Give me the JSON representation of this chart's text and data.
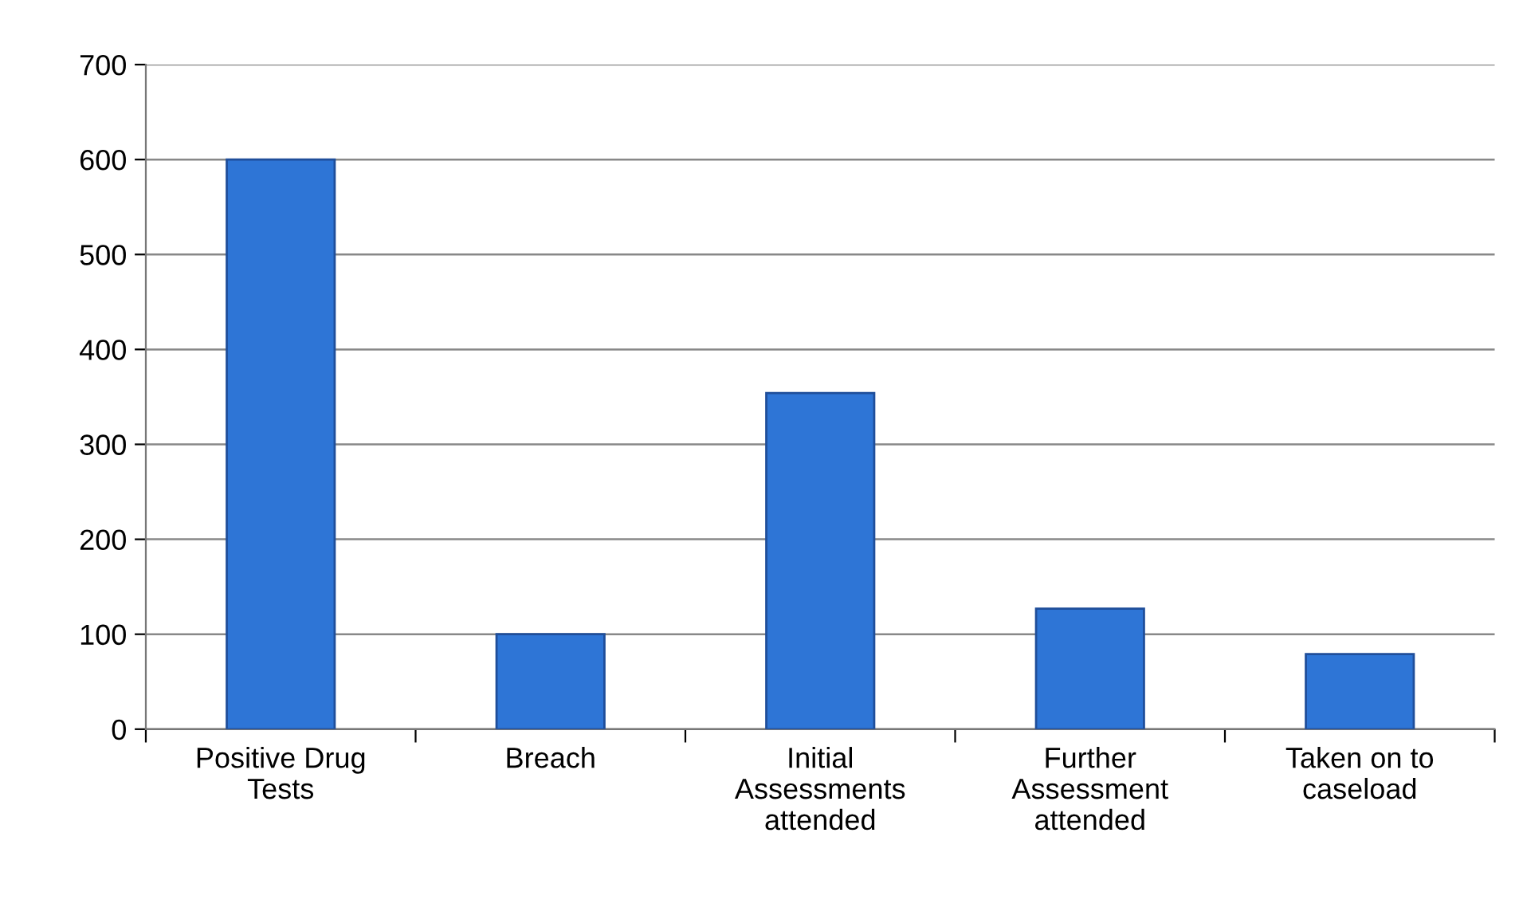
{
  "chart_data": {
    "type": "bar",
    "categories": [
      "Positive Drug\nTests",
      "Breach",
      "Initial\nAssessments\nattended",
      "Further\nAssessment\nattended",
      "Taken on to\ncaseload"
    ],
    "values": [
      600,
      100,
      354,
      127,
      79
    ],
    "color": "#2e75d6",
    "ylim": [
      0,
      700
    ],
    "yticks": [
      0,
      100,
      200,
      300,
      400,
      500,
      600,
      700
    ],
    "grid": "y"
  }
}
